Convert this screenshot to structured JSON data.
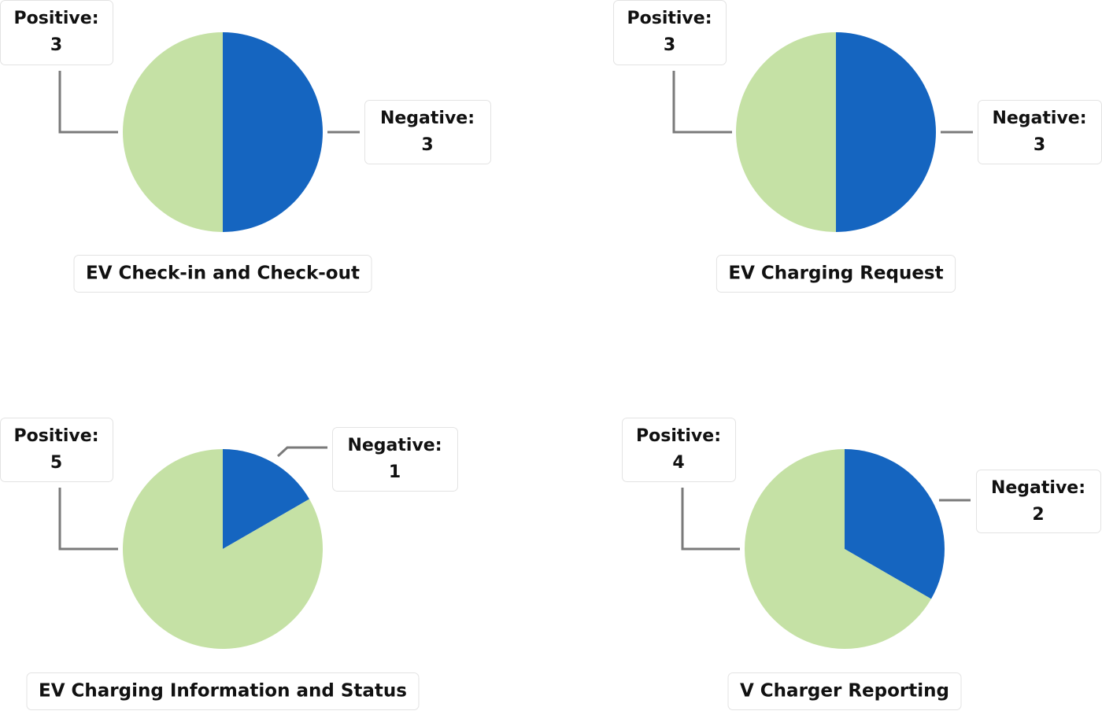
{
  "chart_data": [
    {
      "type": "pie",
      "title": "EV Check-in and Check-out",
      "categories": [
        "Positive:",
        "Negative:"
      ],
      "values": [
        3,
        3
      ],
      "colors": [
        "#c5e1a5",
        "#1565c0"
      ]
    },
    {
      "type": "pie",
      "title": "EV Charging Request",
      "categories": [
        "Positive:",
        "Negative:"
      ],
      "values": [
        3,
        3
      ],
      "colors": [
        "#c5e1a5",
        "#1565c0"
      ]
    },
    {
      "type": "pie",
      "title": "EV Charging Information and Status",
      "categories": [
        "Positive:",
        "Negative:"
      ],
      "values": [
        5,
        1
      ],
      "colors": [
        "#c5e1a5",
        "#1565c0"
      ]
    },
    {
      "type": "pie",
      "title": "V Charger Reporting",
      "categories": [
        "Positive:",
        "Negative:"
      ],
      "values": [
        4,
        2
      ],
      "colors": [
        "#c5e1a5",
        "#1565c0"
      ]
    }
  ]
}
